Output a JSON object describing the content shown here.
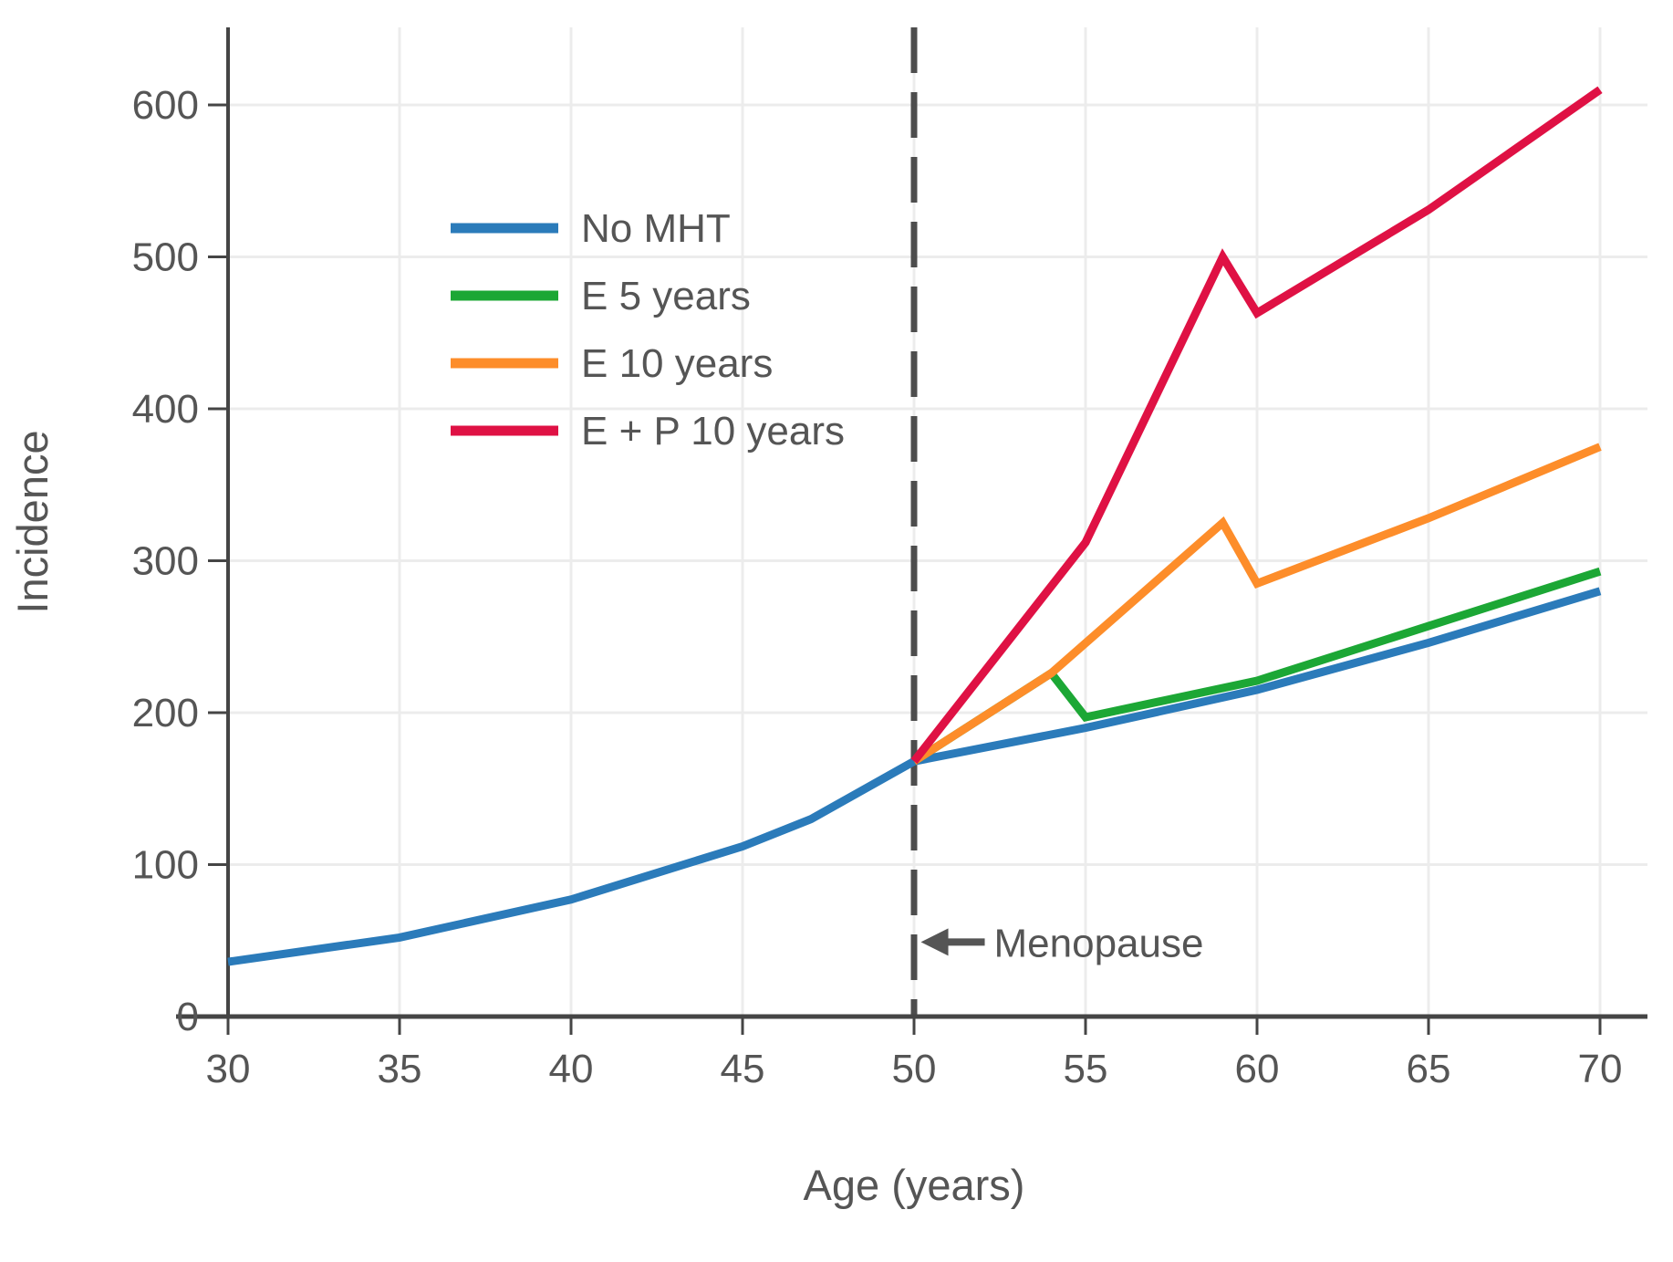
{
  "chart_data": {
    "type": "line",
    "title": "",
    "xlabel": "Age (years)",
    "ylabel": "Incidence",
    "xlim": [
      30,
      70
    ],
    "ylim": [
      0,
      650
    ],
    "x_ticks": [
      30,
      35,
      40,
      45,
      50,
      55,
      60,
      65,
      70
    ],
    "y_ticks": [
      0,
      100,
      200,
      300,
      400,
      500,
      600
    ],
    "grid": true,
    "legend_position": "upper-left-inside",
    "series": [
      {
        "name": "No MHT",
        "color": "#2b7bba",
        "points": [
          [
            30,
            36
          ],
          [
            35,
            52
          ],
          [
            40,
            77
          ],
          [
            45,
            112
          ],
          [
            47,
            130
          ],
          [
            50,
            168
          ],
          [
            55,
            190
          ],
          [
            60,
            215
          ],
          [
            65,
            246
          ],
          [
            70,
            280
          ]
        ]
      },
      {
        "name": "E 5 years",
        "color": "#1ca735",
        "points": [
          [
            50,
            168
          ],
          [
            54,
            226
          ],
          [
            55,
            197
          ],
          [
            60,
            221
          ],
          [
            65,
            257
          ],
          [
            70,
            293
          ]
        ]
      },
      {
        "name": "E 10 years",
        "color": "#fd8d2a",
        "points": [
          [
            50,
            168
          ],
          [
            54,
            226
          ],
          [
            59,
            325
          ],
          [
            60,
            285
          ],
          [
            65,
            328
          ],
          [
            70,
            375
          ]
        ]
      },
      {
        "name": "E + P 10 years",
        "color": "#df1144",
        "points": [
          [
            50,
            168
          ],
          [
            55,
            312
          ],
          [
            59,
            500
          ],
          [
            60,
            463
          ],
          [
            65,
            531
          ],
          [
            70,
            610
          ]
        ]
      }
    ],
    "reference_line": {
      "axis": "x",
      "value": 50,
      "style": "dashed",
      "color": "#4d4d4d"
    },
    "annotations": [
      {
        "text": "Menopause",
        "arrow": "left",
        "x": 50.2,
        "y": 49
      }
    ]
  },
  "colors": {
    "grid": "#ececec",
    "axis": "#454545",
    "tick_text": "#555555",
    "annotation": "#555555"
  }
}
